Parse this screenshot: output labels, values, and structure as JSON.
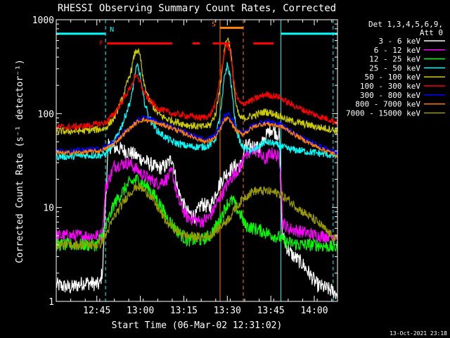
{
  "chart_data": {
    "type": "line",
    "title": "RHESSI Observing Summary Count Rates, Corrected",
    "xlabel": "Start Time (06-Mar-02 12:31:02)",
    "ylabel": "Corrected Count Rate (s⁻¹ detector⁻¹)",
    "footer": "13-Oct-2021 23:18",
    "yscale": "log",
    "xlim": [
      0,
      97
    ],
    "ylim": [
      1,
      1000
    ],
    "x_ticks": [
      {
        "at": 14,
        "label": "12:45"
      },
      {
        "at": 29,
        "label": "13:00"
      },
      {
        "at": 44,
        "label": "13:15"
      },
      {
        "at": 59,
        "label": "13:30"
      },
      {
        "at": 74,
        "label": "13:45"
      },
      {
        "at": 89,
        "label": "14:00"
      }
    ],
    "y_ticks": [
      {
        "at": 1,
        "label": "1"
      },
      {
        "at": 10,
        "label": "10"
      },
      {
        "at": 100,
        "label": "100"
      },
      {
        "at": 1000,
        "label": "1000"
      }
    ],
    "legend": {
      "header": [
        "Det 1,3,4,5,6,9,",
        "Att 0"
      ],
      "placement": "right"
    },
    "flags": [
      {
        "label": "N",
        "color": "#00ffff",
        "y": 710,
        "segments": [
          [
            0,
            17
          ],
          [
            77.5,
            97
          ]
        ]
      },
      {
        "label": "F",
        "color": "#ff0000",
        "y": 560,
        "segments": [
          [
            17.5,
            40
          ],
          [
            47,
            49.5
          ],
          [
            54,
            60
          ],
          [
            68,
            75
          ]
        ]
      },
      {
        "label": "S",
        "color": "#ff8000",
        "y": 820,
        "segments": [
          [
            56.5,
            64.5
          ]
        ]
      }
    ],
    "vlines": [
      {
        "x": 17,
        "color": "#00ffff",
        "style": "dashed"
      },
      {
        "x": 77.5,
        "color": "#00ffff",
        "style": "solid"
      },
      {
        "x": 95.5,
        "color": "#00ffff",
        "style": "dashed"
      },
      {
        "x": 56.5,
        "color": "#ff8000",
        "style": "solid"
      },
      {
        "x": 64.5,
        "color": "#ff8000",
        "style": "dashed"
      }
    ],
    "series": [
      {
        "name": "3 - 6 keV",
        "color": "#ffffff",
        "noise": 0.08,
        "x": [
          0,
          5,
          10,
          15,
          16,
          17,
          18,
          22,
          26,
          30,
          35,
          38,
          40,
          42,
          45,
          48,
          50,
          53,
          56,
          58,
          60,
          62,
          64,
          65,
          68,
          70,
          72,
          74,
          76,
          77,
          77.5,
          78,
          80,
          82,
          85,
          90,
          95,
          97
        ],
        "y": [
          1.5,
          1.4,
          1.6,
          1.5,
          2.2,
          12,
          45,
          42,
          38,
          32,
          26,
          28,
          34,
          15,
          9,
          8,
          11,
          10,
          17,
          22,
          25,
          28,
          28,
          45,
          45,
          42,
          55,
          70,
          62,
          60,
          12,
          5,
          3.5,
          3,
          2.5,
          1.5,
          1.3,
          1.2
        ]
      },
      {
        "name": "6 - 12 keV",
        "color": "#ff00ff",
        "noise": 0.07,
        "x": [
          0,
          5,
          10,
          15,
          16,
          17,
          20,
          25,
          28,
          30,
          35,
          38,
          40,
          42,
          45,
          50,
          53,
          56,
          60,
          62,
          64,
          65,
          66,
          68,
          70,
          72,
          74,
          76,
          77,
          77.5,
          78,
          80,
          85,
          90,
          95,
          97
        ],
        "y": [
          5,
          5,
          5,
          5,
          5.5,
          16,
          28,
          30,
          25,
          22,
          18,
          20,
          24,
          12,
          8,
          7,
          8,
          12,
          20,
          24,
          28,
          40,
          34,
          42,
          38,
          32,
          38,
          36,
          33,
          25,
          7,
          6,
          5.5,
          5,
          5,
          5
        ]
      },
      {
        "name": "12 - 25 keV",
        "color": "#00ff00",
        "noise": 0.07,
        "x": [
          0,
          5,
          10,
          14,
          17,
          20,
          25,
          28,
          32,
          35,
          38,
          42,
          45,
          50,
          53,
          56,
          59,
          61,
          62,
          64,
          65,
          68,
          72,
          75,
          77,
          78,
          80,
          85,
          90,
          95,
          97
        ],
        "y": [
          4,
          4,
          4,
          4,
          6,
          11,
          18,
          20,
          16,
          12,
          8,
          5.5,
          4.5,
          4.5,
          5,
          7,
          11,
          12,
          10,
          8,
          6.5,
          6,
          5.5,
          5,
          4.8,
          4.5,
          4.2,
          4,
          4,
          3.8,
          3.8
        ]
      },
      {
        "name": "25 - 50 keV",
        "color": "#00ffff",
        "noise": 0.04,
        "x": [
          0,
          5,
          10,
          15,
          17,
          20,
          23,
          26,
          27,
          28,
          29,
          30,
          32,
          35,
          38,
          40,
          45,
          50,
          53,
          55,
          57,
          58,
          59,
          60,
          61,
          62,
          63,
          64,
          65,
          68,
          70,
          72,
          75,
          77,
          80,
          85,
          90,
          95,
          97
        ],
        "y": [
          35,
          35,
          36,
          36,
          37,
          50,
          80,
          150,
          250,
          330,
          250,
          150,
          90,
          65,
          55,
          50,
          45,
          44,
          46,
          55,
          120,
          250,
          330,
          250,
          130,
          70,
          55,
          45,
          42,
          40,
          45,
          50,
          48,
          45,
          42,
          40,
          38,
          36,
          35
        ]
      },
      {
        "name": "50 - 100 keV",
        "color": "#cccc00",
        "noise": 0.04,
        "x": [
          0,
          5,
          10,
          15,
          17,
          20,
          23,
          26,
          27,
          28,
          29,
          30,
          32,
          35,
          38,
          40,
          45,
          50,
          53,
          55,
          57,
          58,
          59,
          60,
          61,
          62,
          63,
          64,
          65,
          68,
          70,
          72,
          75,
          77,
          80,
          85,
          90,
          95,
          97
        ],
        "y": [
          65,
          65,
          66,
          68,
          70,
          90,
          150,
          300,
          430,
          480,
          400,
          220,
          140,
          100,
          88,
          84,
          76,
          72,
          75,
          100,
          250,
          500,
          650,
          520,
          250,
          120,
          95,
          88,
          90,
          95,
          100,
          105,
          100,
          95,
          85,
          78,
          72,
          68,
          65
        ]
      },
      {
        "name": "100 - 300 keV",
        "color": "#ff0000",
        "noise": 0.035,
        "x": [
          0,
          5,
          10,
          15,
          17,
          20,
          23,
          26,
          27,
          28,
          29,
          30,
          32,
          35,
          38,
          40,
          45,
          50,
          53,
          55,
          57,
          58,
          59,
          60,
          61,
          62,
          63,
          64,
          65,
          68,
          70,
          72,
          75,
          77,
          80,
          85,
          90,
          95,
          97
        ],
        "y": [
          72,
          72,
          74,
          78,
          80,
          100,
          140,
          200,
          240,
          250,
          220,
          170,
          140,
          115,
          105,
          100,
          95,
          90,
          95,
          130,
          300,
          450,
          550,
          450,
          250,
          160,
          135,
          125,
          130,
          140,
          150,
          160,
          155,
          150,
          130,
          110,
          95,
          85,
          80
        ]
      },
      {
        "name": "300 - 800 keV",
        "color": "#0000ff",
        "noise": 0.03,
        "x": [
          0,
          5,
          10,
          15,
          17,
          20,
          25,
          28,
          30,
          33,
          35,
          38,
          40,
          45,
          50,
          52,
          55,
          57,
          58,
          59,
          60,
          62,
          64,
          66,
          68,
          70,
          72,
          75,
          78,
          80,
          85,
          90,
          95,
          97
        ],
        "y": [
          40,
          40,
          41,
          42,
          44,
          50,
          70,
          85,
          90,
          86,
          80,
          76,
          72,
          62,
          54,
          52,
          60,
          80,
          95,
          100,
          95,
          70,
          62,
          68,
          76,
          80,
          82,
          80,
          75,
          68,
          55,
          46,
          40,
          38
        ]
      },
      {
        "name": "800 - 7000 keV",
        "color": "#ff8000",
        "noise": 0.025,
        "x": [
          0,
          5,
          10,
          15,
          17,
          20,
          25,
          28,
          30,
          33,
          35,
          38,
          40,
          45,
          50,
          52,
          55,
          57,
          58,
          59,
          60,
          62,
          64,
          66,
          68,
          70,
          72,
          75,
          78,
          80,
          85,
          90,
          95,
          97
        ],
        "y": [
          38,
          38,
          39,
          40,
          42,
          48,
          68,
          82,
          86,
          82,
          78,
          74,
          70,
          60,
          52,
          50,
          56,
          72,
          85,
          88,
          84,
          66,
          60,
          65,
          72,
          76,
          78,
          76,
          72,
          66,
          53,
          44,
          38,
          36
        ]
      },
      {
        "name": "7000 - 15000 keV",
        "color": "#999900",
        "noise": 0.05,
        "x": [
          0,
          5,
          10,
          15,
          17,
          20,
          25,
          28,
          32,
          35,
          38,
          42,
          45,
          50,
          53,
          56,
          60,
          62,
          65,
          68,
          70,
          72,
          75,
          77,
          80,
          85,
          90,
          95,
          97
        ],
        "y": [
          4,
          4,
          4,
          4,
          5,
          8,
          14,
          17,
          14,
          10,
          7,
          5.5,
          5,
          4.8,
          5,
          6,
          8,
          10,
          13,
          15,
          15,
          15,
          14.5,
          14,
          12,
          9,
          7,
          5,
          4.5
        ]
      }
    ]
  }
}
